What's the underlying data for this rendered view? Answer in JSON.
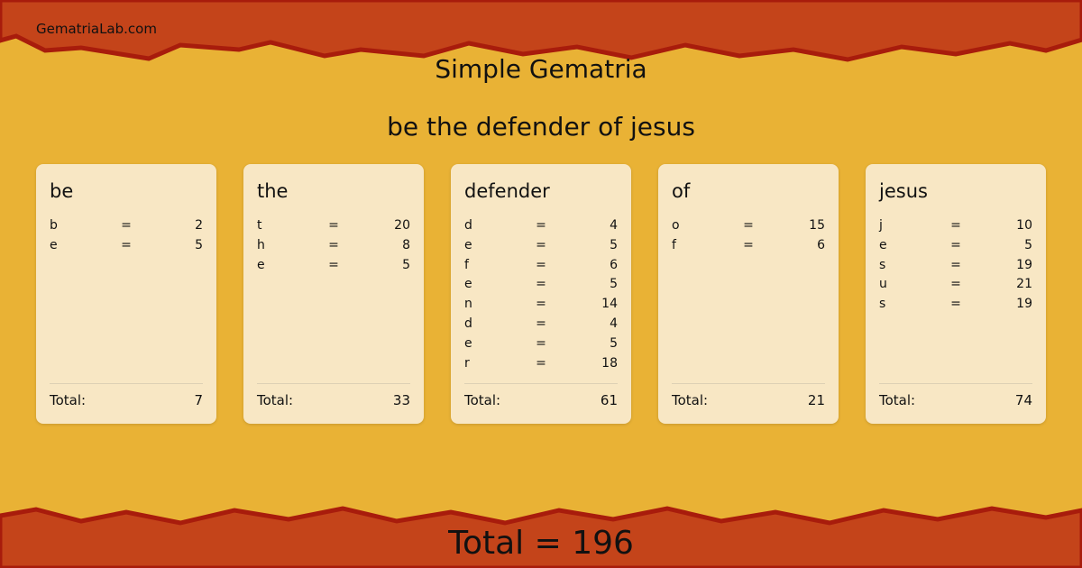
{
  "site": "GematriaLab.com",
  "title": "Simple Gematria",
  "phrase": "be the defender of jesus",
  "total_label": "Total:",
  "cards": [
    {
      "word": "be",
      "rows": [
        [
          "b",
          "=",
          "2"
        ],
        [
          "e",
          "=",
          "5"
        ]
      ],
      "total": "7"
    },
    {
      "word": "the",
      "rows": [
        [
          "t",
          "=",
          "20"
        ],
        [
          "h",
          "=",
          "8"
        ],
        [
          "e",
          "=",
          "5"
        ]
      ],
      "total": "33"
    },
    {
      "word": "defender",
      "rows": [
        [
          "d",
          "=",
          "4"
        ],
        [
          "e",
          "=",
          "5"
        ],
        [
          "f",
          "=",
          "6"
        ],
        [
          "e",
          "=",
          "5"
        ],
        [
          "n",
          "=",
          "14"
        ],
        [
          "d",
          "=",
          "4"
        ],
        [
          "e",
          "=",
          "5"
        ],
        [
          "r",
          "=",
          "18"
        ]
      ],
      "total": "61"
    },
    {
      "word": "of",
      "rows": [
        [
          "o",
          "=",
          "15"
        ],
        [
          "f",
          "=",
          "6"
        ]
      ],
      "total": "21"
    },
    {
      "word": "jesus",
      "rows": [
        [
          "j",
          "=",
          "10"
        ],
        [
          "e",
          "=",
          "5"
        ],
        [
          "s",
          "=",
          "19"
        ],
        [
          "u",
          "=",
          "21"
        ],
        [
          "s",
          "=",
          "19"
        ]
      ],
      "total": "74"
    }
  ],
  "grand_total": "Total = 196",
  "colors": {
    "background": "#e9b235",
    "band": "#c4441a",
    "edge": "#a81c0c",
    "card": "#f8e7c4"
  }
}
